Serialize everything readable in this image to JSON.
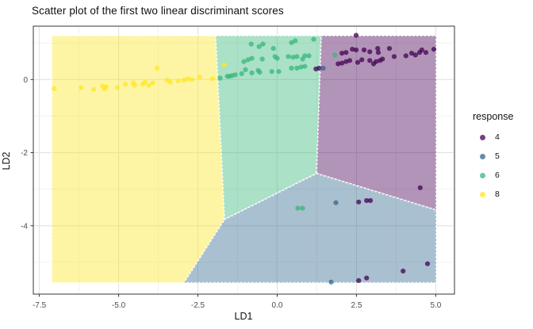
{
  "chart_data": {
    "type": "scatter",
    "title": "Scatter plot of the first two linear discriminant scores",
    "xlabel": "LD1",
    "ylabel": "LD2",
    "xlim": [
      -7.69,
      5.59
    ],
    "ylim": [
      -5.87,
      1.46
    ],
    "grid": "major+minor",
    "x_tick_values": [
      -7.5,
      -5.0,
      -2.5,
      0.0,
      2.5,
      5.0
    ],
    "x_tick_labels": [
      "-7.5",
      "-5.0",
      "-2.5",
      "0.0",
      "2.5",
      "5.0"
    ],
    "x_minor_values": [
      -6.25,
      -3.75,
      -1.25,
      1.25,
      3.75
    ],
    "y_tick_values": [
      0,
      -2,
      -4
    ],
    "y_tick_labels": [
      "0",
      "-2",
      "-4"
    ],
    "y_minor_values": [
      1,
      -1,
      -3,
      -5
    ],
    "legend": {
      "title": "response",
      "position": "right",
      "entries": [
        {
          "label": "4",
          "color": "#440154"
        },
        {
          "label": "5",
          "color": "#31688E"
        },
        {
          "label": "6",
          "color": "#35B779"
        },
        {
          "label": "8",
          "color": "#FDE725"
        }
      ]
    },
    "decision_regions": [
      {
        "class": "8",
        "color": "#FDE725",
        "polygon": [
          [
            -7.11,
            1.2
          ],
          [
            -1.94,
            1.2
          ],
          [
            -1.66,
            -3.83
          ],
          [
            -2.94,
            -5.56
          ],
          [
            -7.11,
            -5.56
          ]
        ]
      },
      {
        "class": "6",
        "color": "#35B779",
        "polygon": [
          [
            -1.94,
            1.2
          ],
          [
            1.39,
            1.2
          ],
          [
            1.24,
            -2.57
          ],
          [
            -1.66,
            -3.83
          ]
        ]
      },
      {
        "class": "4",
        "color": "#440154",
        "polygon": [
          [
            1.39,
            1.2
          ],
          [
            5.01,
            1.2
          ],
          [
            5.01,
            -3.57
          ],
          [
            1.24,
            -2.57
          ]
        ]
      },
      {
        "class": "5",
        "color": "#31688E",
        "polygon": [
          [
            -1.66,
            -3.83
          ],
          [
            1.24,
            -2.57
          ],
          [
            5.01,
            -3.57
          ],
          [
            5.01,
            -5.56
          ],
          [
            -2.94,
            -5.56
          ]
        ]
      }
    ],
    "region_opacity": 0.42,
    "region_boundary_color": "#ffffff",
    "point_opacity": 0.75,
    "point_radius": 3.1,
    "series": [
      {
        "name": "4",
        "color": "#440154",
        "points": [
          [
            2.49,
            1.21
          ],
          [
            2.04,
            0.72
          ],
          [
            2.17,
            0.74
          ],
          [
            2.37,
            0.83
          ],
          [
            2.49,
            0.81
          ],
          [
            2.74,
            0.81
          ],
          [
            2.92,
            0.76
          ],
          [
            3.17,
            0.85
          ],
          [
            3.19,
            0.74
          ],
          [
            3.54,
            0.85
          ],
          [
            4.06,
            0.65
          ],
          [
            4.24,
            0.72
          ],
          [
            4.36,
            0.67
          ],
          [
            4.49,
            0.74
          ],
          [
            4.56,
            0.81
          ],
          [
            4.69,
            0.74
          ],
          [
            4.94,
            0.83
          ],
          [
            1.92,
            0.43
          ],
          [
            2.04,
            0.45
          ],
          [
            2.17,
            0.49
          ],
          [
            2.29,
            0.52
          ],
          [
            2.54,
            0.47
          ],
          [
            2.67,
            0.54
          ],
          [
            2.92,
            0.52
          ],
          [
            3.04,
            0.43
          ],
          [
            3.12,
            0.49
          ],
          [
            3.24,
            0.52
          ],
          [
            3.32,
            0.56
          ],
          [
            3.69,
            0.63
          ],
          [
            1.22,
            0.29
          ],
          [
            1.32,
            0.31
          ],
          [
            2.57,
            -3.35
          ],
          [
            2.82,
            -3.31
          ],
          [
            2.94,
            -3.31
          ],
          [
            4.51,
            -2.96
          ],
          [
            4.74,
            -5.04
          ],
          [
            3.97,
            -5.24
          ],
          [
            2.57,
            -5.5
          ],
          [
            2.82,
            -5.43
          ]
        ]
      },
      {
        "name": "5",
        "color": "#31688E",
        "points": [
          [
            1.45,
            0.31
          ],
          [
            1.85,
            -3.37
          ],
          [
            1.7,
            -5.54
          ]
        ]
      },
      {
        "name": "6",
        "color": "#35B779",
        "points": [
          [
            -0.82,
            0.97
          ],
          [
            -0.57,
            0.9
          ],
          [
            -0.45,
            0.97
          ],
          [
            -0.12,
            0.85
          ],
          [
            0.45,
            1.01
          ],
          [
            0.57,
            1.06
          ],
          [
            1.15,
            1.1
          ],
          [
            -1.05,
            0.49
          ],
          [
            -0.92,
            0.54
          ],
          [
            -0.8,
            0.58
          ],
          [
            -0.47,
            0.56
          ],
          [
            -0.07,
            0.63
          ],
          [
            0.0,
            0.58
          ],
          [
            0.35,
            0.63
          ],
          [
            0.5,
            0.61
          ],
          [
            0.62,
            0.63
          ],
          [
            0.8,
            0.56
          ],
          [
            0.87,
            0.65
          ],
          [
            1.0,
            0.65
          ],
          [
            -1.0,
            0.27
          ],
          [
            -0.6,
            0.25
          ],
          [
            -0.17,
            0.22
          ],
          [
            0.05,
            0.22
          ],
          [
            0.45,
            0.31
          ],
          [
            0.62,
            0.31
          ],
          [
            0.75,
            0.34
          ],
          [
            0.87,
            0.36
          ],
          [
            -1.8,
            0.04
          ],
          [
            -1.57,
            0.09
          ],
          [
            -1.5,
            0.09
          ],
          [
            -1.42,
            0.11
          ],
          [
            -1.32,
            0.13
          ],
          [
            -1.12,
            0.16
          ],
          [
            -0.8,
            0.18
          ],
          [
            -0.55,
            0.2
          ],
          [
            1.82,
            0.67
          ],
          [
            0.65,
            -3.52
          ],
          [
            0.8,
            -3.52
          ]
        ]
      },
      {
        "name": "8",
        "color": "#FDE725",
        "points": [
          [
            -7.03,
            -0.25
          ],
          [
            -6.18,
            -0.22
          ],
          [
            -5.79,
            -0.27
          ],
          [
            -5.51,
            -0.18
          ],
          [
            -5.44,
            -0.25
          ],
          [
            -5.39,
            -0.2
          ],
          [
            -5.04,
            -0.22
          ],
          [
            -4.79,
            -0.13
          ],
          [
            -4.54,
            -0.09
          ],
          [
            -4.49,
            -0.16
          ],
          [
            -4.24,
            -0.13
          ],
          [
            -4.16,
            -0.07
          ],
          [
            -4.04,
            -0.16
          ],
          [
            -3.92,
            -0.09
          ],
          [
            -3.79,
            0.31
          ],
          [
            -3.47,
            -0.02
          ],
          [
            -3.37,
            -0.07
          ],
          [
            -3.12,
            -0.04
          ],
          [
            -2.94,
            -0.02
          ],
          [
            -2.82,
            0.02
          ],
          [
            -2.69,
            0.0
          ],
          [
            -2.44,
            0.07
          ],
          [
            -2.04,
            0.02
          ],
          [
            -1.67,
            0.4
          ]
        ]
      }
    ]
  }
}
